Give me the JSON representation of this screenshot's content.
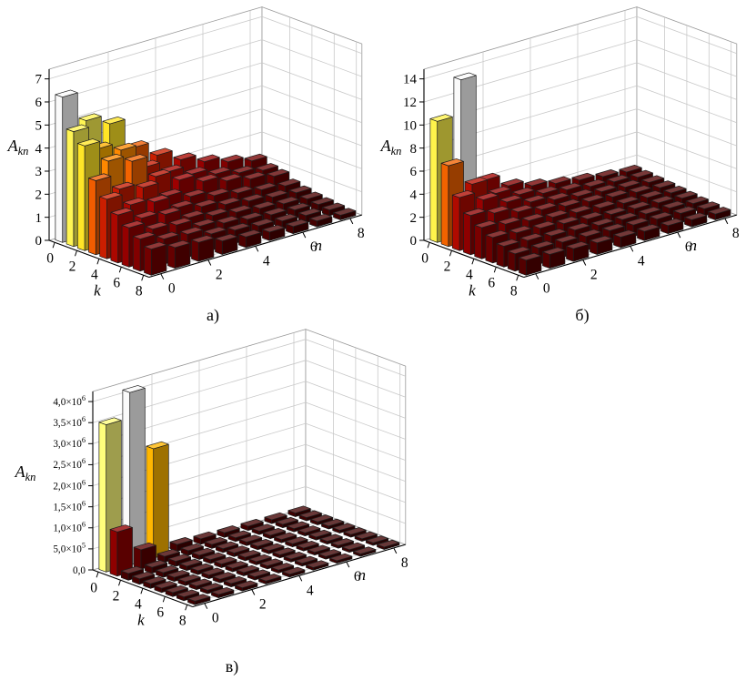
{
  "style": {
    "background": "#ffffff",
    "grid": "#c9c9c9",
    "axis": "#000000",
    "wall_edge": "#999999",
    "bar_stroke": "#1c1c1c",
    "text": "#000000"
  },
  "colormap": [
    [
      0.0,
      "#3A0000"
    ],
    [
      0.1,
      "#550000"
    ],
    [
      0.2,
      "#7A0000"
    ],
    [
      0.3,
      "#A00000"
    ],
    [
      0.4,
      "#C61800"
    ],
    [
      0.5,
      "#EE5500"
    ],
    [
      0.58,
      "#FF9100"
    ],
    [
      0.66,
      "#FFC800"
    ],
    [
      0.74,
      "#FFEE33"
    ],
    [
      0.86,
      "#FFFF80"
    ],
    [
      0.92,
      "#E9E9E9"
    ],
    [
      1.0,
      "#FAFAFA"
    ]
  ],
  "captions": {
    "a": "а)",
    "b": "б)",
    "v": "в)"
  },
  "chart_data": [
    {
      "id": "a",
      "type": "bar3d",
      "caption": "а)",
      "axes": {
        "z_label": {
          "base": "A",
          "sub": "kn"
        },
        "k_label": "k",
        "n_label": "n",
        "k_ticks": [
          "0",
          "2",
          "4",
          "6",
          "8"
        ],
        "n_ticks": [
          "0",
          "2",
          "4",
          "6",
          "8"
        ],
        "z_ticks": [
          {
            "v": 0,
            "label": "0"
          },
          {
            "v": 1,
            "label": "1"
          },
          {
            "v": 2,
            "label": "2"
          },
          {
            "v": 3,
            "label": "3"
          },
          {
            "v": 4,
            "label": "4"
          },
          {
            "v": 5,
            "label": "5"
          },
          {
            "v": 6,
            "label": "6"
          },
          {
            "v": 7,
            "label": "7"
          }
        ],
        "k_range": [
          0,
          8
        ],
        "n_range": [
          0,
          8
        ],
        "zlim": [
          0,
          7
        ],
        "grid": true
      },
      "values": [
        [
          6.3,
          4.98,
          4.54,
          3.21,
          2.58,
          2.08,
          1.7,
          1.39,
          1.13
        ],
        [
          4.98,
          3.93,
          3.58,
          2.54,
          2.04,
          1.64,
          1.34,
          1.09,
          0.9
        ],
        [
          4.54,
          3.58,
          3.27,
          2.31,
          1.86,
          1.5,
          1.22,
          1.0,
          0.82
        ],
        [
          3.21,
          2.54,
          2.31,
          1.64,
          1.32,
          1.06,
          0.87,
          0.71,
          0.58
        ],
        [
          2.58,
          2.04,
          1.86,
          1.32,
          1.06,
          0.85,
          0.7,
          0.57,
          0.46
        ],
        [
          2.08,
          1.64,
          1.5,
          1.06,
          0.85,
          0.69,
          0.56,
          0.46,
          0.37
        ],
        [
          1.7,
          1.34,
          1.22,
          0.87,
          0.7,
          0.56,
          0.46,
          0.37,
          0.31
        ],
        [
          1.39,
          1.09,
          1.0,
          0.71,
          0.57,
          0.46,
          0.37,
          0.31,
          0.25
        ],
        [
          1.13,
          0.9,
          0.82,
          0.58,
          0.46,
          0.37,
          0.31,
          0.25,
          0.2
        ]
      ]
    },
    {
      "id": "b",
      "type": "bar3d",
      "caption": "б)",
      "axes": {
        "z_label": {
          "base": "A",
          "sub": "kn"
        },
        "k_label": "k",
        "n_label": "n",
        "k_ticks": [
          "0",
          "2",
          "4",
          "6",
          "8"
        ],
        "n_ticks": [
          "0",
          "2",
          "4",
          "6",
          "8"
        ],
        "z_ticks": [
          {
            "v": 0,
            "label": "0"
          },
          {
            "v": 2,
            "label": "2"
          },
          {
            "v": 4,
            "label": "4"
          },
          {
            "v": 6,
            "label": "6"
          },
          {
            "v": 8,
            "label": "8"
          },
          {
            "v": 10,
            "label": "10"
          },
          {
            "v": 12,
            "label": "12"
          },
          {
            "v": 14,
            "label": "14"
          }
        ],
        "k_range": [
          0,
          8
        ],
        "n_range": [
          0,
          8
        ],
        "zlim": [
          0,
          14
        ],
        "grid": true
      },
      "values": [
        [
          10.5,
          13.5,
          4.2,
          3.1,
          2.5,
          2.1,
          1.8,
          1.5,
          1.3
        ],
        [
          7.0,
          4.8,
          3.4,
          2.7,
          2.2,
          1.9,
          1.6,
          1.4,
          1.2
        ],
        [
          4.6,
          3.8,
          3.0,
          2.4,
          2.0,
          1.7,
          1.5,
          1.3,
          1.1
        ],
        [
          3.4,
          3.0,
          2.5,
          2.1,
          1.8,
          1.6,
          1.4,
          1.2,
          1.0
        ],
        [
          2.7,
          2.4,
          2.1,
          1.8,
          1.6,
          1.4,
          1.2,
          1.1,
          0.9
        ],
        [
          2.2,
          2.0,
          1.8,
          1.6,
          1.4,
          1.2,
          1.1,
          1.0,
          0.8
        ],
        [
          1.8,
          1.7,
          1.5,
          1.4,
          1.2,
          1.1,
          1.0,
          0.9,
          0.7
        ],
        [
          1.5,
          1.4,
          1.3,
          1.2,
          1.1,
          1.0,
          0.9,
          0.8,
          0.6
        ],
        [
          1.3,
          1.2,
          1.1,
          1.0,
          0.9,
          0.8,
          0.7,
          0.6,
          0.5
        ]
      ]
    },
    {
      "id": "v",
      "type": "bar3d",
      "caption": "в)",
      "axes": {
        "z_label": {
          "base": "A",
          "sub": "kn"
        },
        "k_label": "k",
        "n_label": "n",
        "k_ticks": [
          "0",
          "2",
          "4",
          "6",
          "8"
        ],
        "n_ticks": [
          "0",
          "2",
          "4",
          "6",
          "8"
        ],
        "z_ticks": [
          {
            "v": 0,
            "label": "0,0"
          },
          {
            "v": 500000,
            "label": "5,0×10^5"
          },
          {
            "v": 1000000,
            "label": "1,0×10^6"
          },
          {
            "v": 1500000,
            "label": "1,5×10^6"
          },
          {
            "v": 2000000,
            "label": "2,0×10^6"
          },
          {
            "v": 2500000,
            "label": "2,5×10^6"
          },
          {
            "v": 3000000,
            "label": "3,0×10^6"
          },
          {
            "v": 3500000,
            "label": "3,5×10^6"
          },
          {
            "v": 4000000,
            "label": "4,0×10^6"
          }
        ],
        "k_range": [
          0,
          8
        ],
        "n_range": [
          0,
          8
        ],
        "zlim": [
          0,
          4000000
        ],
        "grid": true
      },
      "values": [
        [
          3500000,
          4100000,
          2600000,
          160000,
          130000,
          110000,
          100000,
          90000,
          85000
        ],
        [
          1050000,
          460000,
          140000,
          110000,
          95000,
          88000,
          82000,
          78000,
          74000
        ],
        [
          160000,
          140000,
          120000,
          100000,
          90000,
          84000,
          79000,
          75000,
          71000
        ],
        [
          130000,
          110000,
          100000,
          92000,
          86000,
          80000,
          76000,
          72000,
          68000
        ],
        [
          110000,
          98000,
          92000,
          86000,
          81000,
          76000,
          72000,
          68000,
          65000
        ],
        [
          100000,
          92000,
          86000,
          81000,
          76000,
          72000,
          68000,
          65000,
          62000
        ],
        [
          94000,
          87000,
          82000,
          77000,
          73000,
          69000,
          65000,
          62000,
          59000
        ],
        [
          89000,
          83000,
          78000,
          74000,
          70000,
          66000,
          63000,
          60000,
          57000
        ],
        [
          85000,
          79000,
          75000,
          71000,
          67000,
          63000,
          60000,
          57000,
          55000
        ]
      ]
    }
  ]
}
